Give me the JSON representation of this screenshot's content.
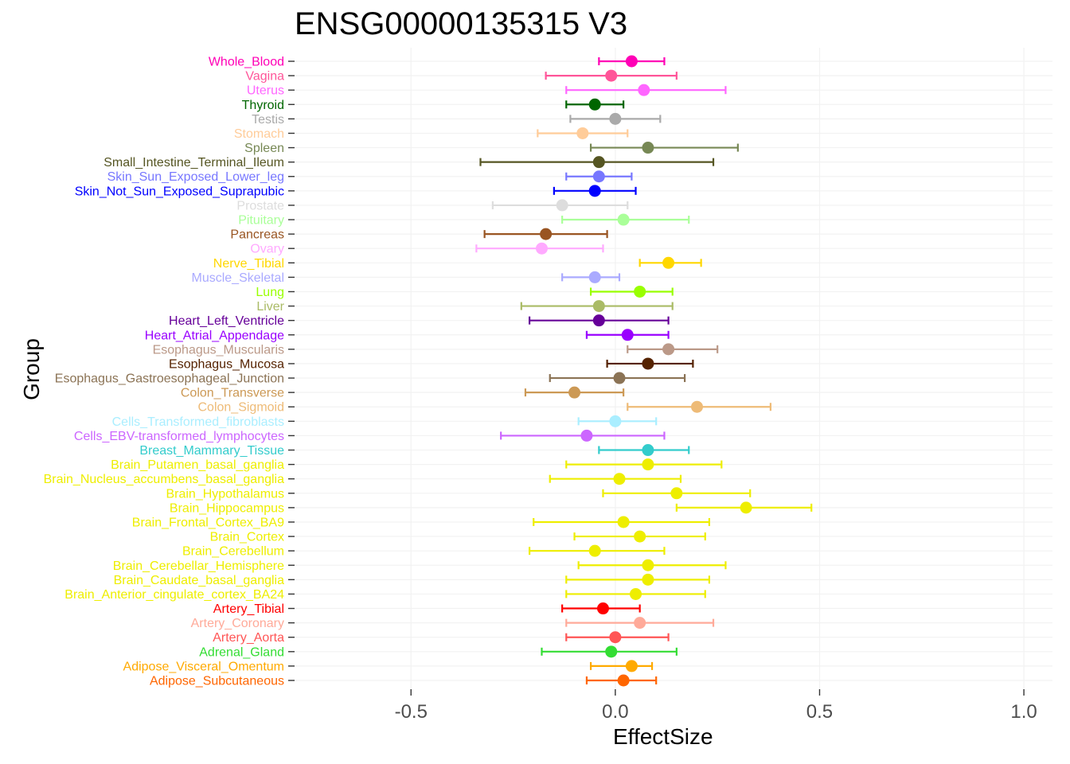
{
  "figure": {
    "title": "ENSG00000135315 V3",
    "xlabel": "EffectSize",
    "ylabel": "Group"
  },
  "chart_data": {
    "type": "scatter",
    "subtype": "forest-plot-with-error-bars",
    "title": "ENSG00000135315 V3",
    "xlabel": "EffectSize",
    "ylabel": "Group",
    "xlim": [
      -0.785,
      1.07
    ],
    "x_ticks": [
      "-0.5",
      "0.0",
      "0.5",
      "1.0"
    ],
    "x_tick_values": [
      -0.5,
      0.0,
      0.5,
      1.0
    ],
    "grid": "faint",
    "legend": "none",
    "groups": [
      {
        "label": "Whole_Blood",
        "color": "#FF00B6",
        "estimate": 0.04,
        "ci_low": -0.04,
        "ci_high": 0.12
      },
      {
        "label": "Vagina",
        "color": "#FF5599",
        "estimate": -0.01,
        "ci_low": -0.17,
        "ci_high": 0.15
      },
      {
        "label": "Uterus",
        "color": "#FF66FF",
        "estimate": 0.07,
        "ci_low": -0.12,
        "ci_high": 0.27
      },
      {
        "label": "Thyroid",
        "color": "#006600",
        "estimate": -0.05,
        "ci_low": -0.12,
        "ci_high": 0.02
      },
      {
        "label": "Testis",
        "color": "#AAAAAA",
        "estimate": 0.0,
        "ci_low": -0.11,
        "ci_high": 0.11
      },
      {
        "label": "Stomach",
        "color": "#FFCC99",
        "estimate": -0.08,
        "ci_low": -0.19,
        "ci_high": 0.03
      },
      {
        "label": "Spleen",
        "color": "#778855",
        "estimate": 0.08,
        "ci_low": -0.06,
        "ci_high": 0.3
      },
      {
        "label": "Small_Intestine_Terminal_Ileum",
        "color": "#555522",
        "estimate": -0.04,
        "ci_low": -0.33,
        "ci_high": 0.24
      },
      {
        "label": "Skin_Sun_Exposed_Lower_leg",
        "color": "#7777FF",
        "estimate": -0.04,
        "ci_low": -0.12,
        "ci_high": 0.04
      },
      {
        "label": "Skin_Not_Sun_Exposed_Suprapubic",
        "color": "#0000FF",
        "estimate": -0.05,
        "ci_low": -0.15,
        "ci_high": 0.05
      },
      {
        "label": "Prostate",
        "color": "#DDDDDD",
        "estimate": -0.13,
        "ci_low": -0.3,
        "ci_high": 0.03
      },
      {
        "label": "Pituitary",
        "color": "#AAFF99",
        "estimate": 0.02,
        "ci_low": -0.13,
        "ci_high": 0.18
      },
      {
        "label": "Pancreas",
        "color": "#995522",
        "estimate": -0.17,
        "ci_low": -0.32,
        "ci_high": -0.02
      },
      {
        "label": "Ovary",
        "color": "#FFAAFF",
        "estimate": -0.18,
        "ci_low": -0.34,
        "ci_high": -0.03
      },
      {
        "label": "Nerve_Tibial",
        "color": "#FFD700",
        "estimate": 0.13,
        "ci_low": 0.06,
        "ci_high": 0.21
      },
      {
        "label": "Muscle_Skeletal",
        "color": "#AAAAFF",
        "estimate": -0.05,
        "ci_low": -0.13,
        "ci_high": 0.01
      },
      {
        "label": "Lung",
        "color": "#99FF00",
        "estimate": 0.06,
        "ci_low": -0.06,
        "ci_high": 0.14
      },
      {
        "label": "Liver",
        "color": "#AABB66",
        "estimate": -0.04,
        "ci_low": -0.23,
        "ci_high": 0.14
      },
      {
        "label": "Heart_Left_Ventricle",
        "color": "#660099",
        "estimate": -0.04,
        "ci_low": -0.21,
        "ci_high": 0.13
      },
      {
        "label": "Heart_Atrial_Appendage",
        "color": "#9900FF",
        "estimate": 0.03,
        "ci_low": -0.07,
        "ci_high": 0.13
      },
      {
        "label": "Esophagus_Muscularis",
        "color": "#BB9988",
        "estimate": 0.13,
        "ci_low": 0.03,
        "ci_high": 0.25
      },
      {
        "label": "Esophagus_Mucosa",
        "color": "#552200",
        "estimate": 0.08,
        "ci_low": -0.02,
        "ci_high": 0.19
      },
      {
        "label": "Esophagus_Gastroesophageal_Junction",
        "color": "#8B7355",
        "estimate": 0.01,
        "ci_low": -0.16,
        "ci_high": 0.17
      },
      {
        "label": "Colon_Transverse",
        "color": "#CC9955",
        "estimate": -0.1,
        "ci_low": -0.22,
        "ci_high": 0.02
      },
      {
        "label": "Colon_Sigmoid",
        "color": "#EEBB77",
        "estimate": 0.2,
        "ci_low": 0.03,
        "ci_high": 0.38
      },
      {
        "label": "Cells_Transformed_fibroblasts",
        "color": "#AAEEFF",
        "estimate": 0.0,
        "ci_low": -0.09,
        "ci_high": 0.1
      },
      {
        "label": "Cells_EBV-transformed_lymphocytes",
        "color": "#CC66FF",
        "estimate": -0.07,
        "ci_low": -0.28,
        "ci_high": 0.12
      },
      {
        "label": "Breast_Mammary_Tissue",
        "color": "#33CCCC",
        "estimate": 0.08,
        "ci_low": -0.04,
        "ci_high": 0.18
      },
      {
        "label": "Brain_Putamen_basal_ganglia",
        "color": "#EEEE00",
        "estimate": 0.08,
        "ci_low": -0.12,
        "ci_high": 0.26
      },
      {
        "label": "Brain_Nucleus_accumbens_basal_ganglia",
        "color": "#EEEE00",
        "estimate": 0.01,
        "ci_low": -0.16,
        "ci_high": 0.16
      },
      {
        "label": "Brain_Hypothalamus",
        "color": "#EEEE00",
        "estimate": 0.15,
        "ci_low": -0.03,
        "ci_high": 0.33
      },
      {
        "label": "Brain_Hippocampus",
        "color": "#EEEE00",
        "estimate": 0.32,
        "ci_low": 0.15,
        "ci_high": 0.48
      },
      {
        "label": "Brain_Frontal_Cortex_BA9",
        "color": "#EEEE00",
        "estimate": 0.02,
        "ci_low": -0.2,
        "ci_high": 0.23
      },
      {
        "label": "Brain_Cortex",
        "color": "#EEEE00",
        "estimate": 0.06,
        "ci_low": -0.1,
        "ci_high": 0.22
      },
      {
        "label": "Brain_Cerebellum",
        "color": "#EEEE00",
        "estimate": -0.05,
        "ci_low": -0.21,
        "ci_high": 0.12
      },
      {
        "label": "Brain_Cerebellar_Hemisphere",
        "color": "#EEEE00",
        "estimate": 0.08,
        "ci_low": -0.09,
        "ci_high": 0.27
      },
      {
        "label": "Brain_Caudate_basal_ganglia",
        "color": "#EEEE00",
        "estimate": 0.08,
        "ci_low": -0.12,
        "ci_high": 0.23
      },
      {
        "label": "Brain_Anterior_cingulate_cortex_BA24",
        "color": "#EEEE00",
        "estimate": 0.05,
        "ci_low": -0.12,
        "ci_high": 0.22
      },
      {
        "label": "Artery_Tibial",
        "color": "#FF0000",
        "estimate": -0.03,
        "ci_low": -0.13,
        "ci_high": 0.06
      },
      {
        "label": "Artery_Coronary",
        "color": "#FFAA99",
        "estimate": 0.06,
        "ci_low": -0.12,
        "ci_high": 0.24
      },
      {
        "label": "Artery_Aorta",
        "color": "#FF5555",
        "estimate": 0.0,
        "ci_low": -0.12,
        "ci_high": 0.13
      },
      {
        "label": "Adrenal_Gland",
        "color": "#33DD33",
        "estimate": -0.01,
        "ci_low": -0.18,
        "ci_high": 0.15
      },
      {
        "label": "Adipose_Visceral_Omentum",
        "color": "#FFAA00",
        "estimate": 0.04,
        "ci_low": -0.06,
        "ci_high": 0.09
      },
      {
        "label": "Adipose_Subcutaneous",
        "color": "#FF6600",
        "estimate": 0.02,
        "ci_low": -0.07,
        "ci_high": 0.1
      }
    ]
  }
}
